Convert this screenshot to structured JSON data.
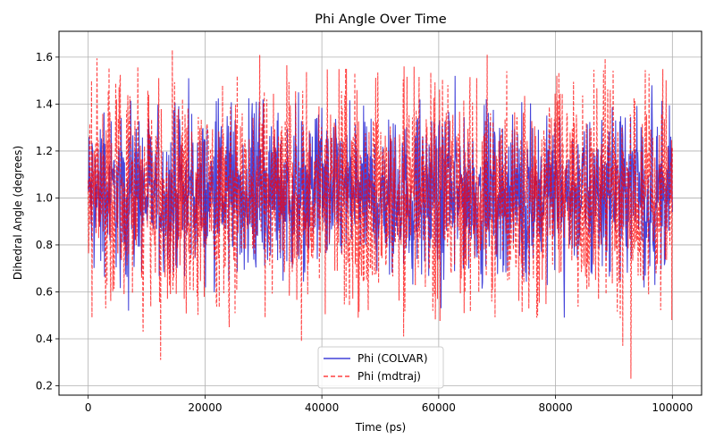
{
  "chart_data": {
    "type": "line",
    "title": "Phi Angle Over Time",
    "xlabel": "Time (ps)",
    "ylabel": "Dihedral Angle (degrees)",
    "xlim": [
      -5000,
      105000
    ],
    "ylim": [
      0.16,
      1.71
    ],
    "xticks": [
      0,
      20000,
      40000,
      60000,
      80000,
      100000
    ],
    "xtick_labels": [
      "0",
      "20000",
      "40000",
      "60000",
      "80000",
      "100000"
    ],
    "yticks": [
      0.2,
      0.4,
      0.6,
      0.8,
      1.0,
      1.2,
      1.4,
      1.6
    ],
    "ytick_labels": [
      "0.2",
      "0.4",
      "0.6",
      "0.8",
      "1.0",
      "1.2",
      "1.4",
      "1.6"
    ],
    "grid": true,
    "legend_position": "lower-center",
    "series": [
      {
        "name": "Phi (COLVAR)",
        "color": "#0000cc",
        "linestyle": "solid",
        "x_range": [
          0,
          100000
        ],
        "center": 1.02,
        "band": [
          0.72,
          1.3
        ],
        "peaks": [
          {
            "x": 17200,
            "y": 1.51
          },
          {
            "x": 36000,
            "y": 1.45
          },
          {
            "x": 62800,
            "y": 1.52
          },
          {
            "x": 96500,
            "y": 1.48
          },
          {
            "x": 6900,
            "y": 0.52
          },
          {
            "x": 60400,
            "y": 0.53
          },
          {
            "x": 81500,
            "y": 0.49
          }
        ]
      },
      {
        "name": "Phi (mdtraj)",
        "color": "#ff0000",
        "linestyle": "dashed",
        "x_range": [
          0,
          100000
        ],
        "center": 1.02,
        "band": [
          0.62,
          1.4
        ],
        "peaks": [
          {
            "x": 14400,
            "y": 1.63
          },
          {
            "x": 68300,
            "y": 1.61
          },
          {
            "x": 44200,
            "y": 1.55
          },
          {
            "x": 25500,
            "y": 1.52
          },
          {
            "x": 12400,
            "y": 0.31
          },
          {
            "x": 92900,
            "y": 0.23
          },
          {
            "x": 36500,
            "y": 0.39
          },
          {
            "x": 9400,
            "y": 0.43
          },
          {
            "x": 91500,
            "y": 0.37
          },
          {
            "x": 54000,
            "y": 0.41
          },
          {
            "x": 99900,
            "y": 0.48
          }
        ]
      }
    ]
  }
}
